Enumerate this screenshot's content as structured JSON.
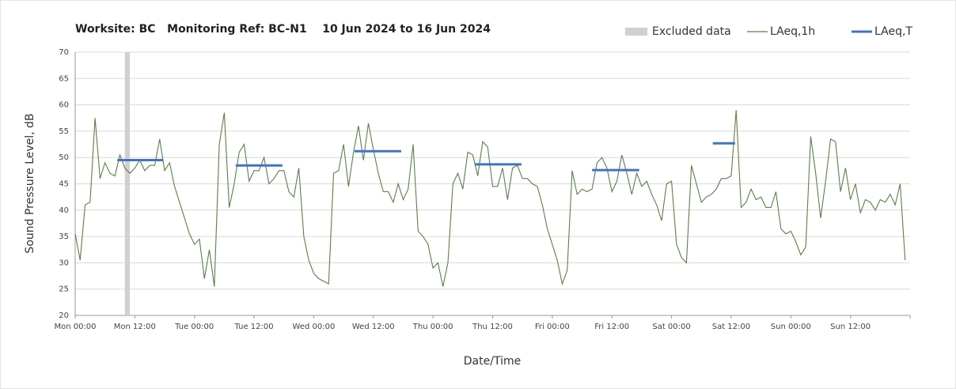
{
  "chart_data": {
    "type": "line",
    "title": "Worksite: BC   Monitoring Ref: BC-N1    10 Jun 2024 to 16 Jun 2024",
    "xlabel": "Date/Time",
    "ylabel": "Sound Pressure Level, dB",
    "xlim": [
      0,
      168
    ],
    "ylim": [
      20,
      70
    ],
    "yticks": [
      20,
      25,
      30,
      35,
      40,
      45,
      50,
      55,
      60,
      65,
      70
    ],
    "xticks": [
      {
        "value": 0,
        "label": "Mon 00:00"
      },
      {
        "value": 12,
        "label": "Mon 12:00"
      },
      {
        "value": 24,
        "label": "Tue 00:00"
      },
      {
        "value": 36,
        "label": "Tue 12:00"
      },
      {
        "value": 48,
        "label": "Wed 00:00"
      },
      {
        "value": 60,
        "label": "Wed 12:00"
      },
      {
        "value": 72,
        "label": "Thu 00:00"
      },
      {
        "value": 84,
        "label": "Thu 12:00"
      },
      {
        "value": 96,
        "label": "Fri 00:00"
      },
      {
        "value": 108,
        "label": "Fri 12:00"
      },
      {
        "value": 120,
        "label": "Sat 00:00"
      },
      {
        "value": 132,
        "label": "Sat 12:00"
      },
      {
        "value": 144,
        "label": "Sun 00:00"
      },
      {
        "value": 156,
        "label": "Sun 12:00"
      }
    ],
    "grid": true,
    "excluded": {
      "name": "Excluded data",
      "color": "#d0d0d0",
      "ranges": [
        [
          10,
          11
        ]
      ]
    },
    "series": [
      {
        "name": "LAeq,1h",
        "color": "#5b7f4b",
        "x": [
          0,
          1,
          2,
          3,
          4,
          5,
          6,
          7,
          8,
          9,
          10,
          11,
          12,
          13,
          14,
          15,
          16,
          17,
          18,
          19,
          20,
          21,
          22,
          23,
          24,
          25,
          26,
          27,
          28,
          29,
          30,
          31,
          32,
          33,
          34,
          35,
          36,
          37,
          38,
          39,
          40,
          41,
          42,
          43,
          44,
          45,
          46,
          47,
          48,
          49,
          50,
          51,
          52,
          53,
          54,
          55,
          56,
          57,
          58,
          59,
          60,
          61,
          62,
          63,
          64,
          65,
          66,
          67,
          68,
          69,
          70,
          71,
          72,
          73,
          74,
          75,
          76,
          77,
          78,
          79,
          80,
          81,
          82,
          83,
          84,
          85,
          86,
          87,
          88,
          89,
          90,
          91,
          92,
          93,
          94,
          95,
          96,
          97,
          98,
          99,
          100,
          101,
          102,
          103,
          104,
          105,
          106,
          107,
          108,
          109,
          110,
          111,
          112,
          113,
          114,
          115,
          116,
          117,
          118,
          119,
          120,
          121,
          122,
          123,
          124,
          125,
          126,
          127,
          128,
          129,
          130,
          131,
          132,
          133,
          134,
          135,
          136,
          137,
          138,
          139,
          140,
          141,
          142,
          143,
          144,
          145,
          146,
          147,
          148,
          149,
          150,
          151,
          152,
          153,
          154,
          155,
          156,
          157,
          158,
          159,
          160,
          161,
          162,
          163,
          164,
          165,
          166,
          167
        ],
        "values": [
          35.5,
          30.5,
          41,
          41.5,
          57.5,
          46,
          49,
          47,
          46.5,
          50.5,
          48,
          47,
          48,
          49.5,
          47.5,
          48.5,
          48.5,
          53.5,
          47.5,
          49,
          44.5,
          41.5,
          38.5,
          35.5,
          33.5,
          34.5,
          27,
          32.5,
          25.5,
          52.5,
          58.5,
          40.5,
          45,
          51,
          52.5,
          45.5,
          47.5,
          47.5,
          50,
          45,
          46,
          47.5,
          47.5,
          43.5,
          42.5,
          48,
          35,
          30.5,
          28,
          27,
          26.5,
          26,
          47,
          47.5,
          52.5,
          44.5,
          51,
          56,
          49.5,
          56.5,
          51.5,
          47,
          43.5,
          43.5,
          41.5,
          45,
          42,
          44,
          52.5,
          36,
          35,
          33.5,
          29,
          30,
          25.5,
          30,
          45,
          47,
          44,
          51,
          50.5,
          46.5,
          53,
          52,
          44.5,
          44.5,
          48,
          42,
          48,
          48.5,
          46,
          46,
          45,
          44.5,
          41,
          36.5,
          33.5,
          30.5,
          26,
          28.5,
          47.5,
          43,
          44,
          43.5,
          44,
          49,
          50,
          48,
          43.5,
          45.5,
          50.5,
          47,
          43,
          47,
          44.5,
          45.5,
          43,
          41,
          38,
          45,
          45.5,
          33.5,
          31,
          30,
          48.5,
          45,
          41.5,
          42.5,
          43,
          44,
          46,
          46,
          46.5,
          59,
          40.5,
          41.5,
          44,
          42,
          42.5,
          40.5,
          40.5,
          43.5,
          36.5,
          35.5,
          36,
          34,
          31.5,
          33,
          54,
          47,
          38.5,
          45.5,
          53.5,
          53,
          43.5,
          48,
          42,
          45,
          39.5,
          42,
          41.5,
          40,
          42,
          41.5,
          43,
          41,
          45,
          30.5
        ]
      },
      {
        "name": "LAeq,T",
        "color": "#4472c4",
        "x_start": [
          8.5,
          32.3,
          56.2,
          80.4,
          104,
          128.3
        ],
        "x_end": [
          17.7,
          41.7,
          65.6,
          89.8,
          113.5,
          132.8
        ],
        "values": [
          49.5,
          48.5,
          51.2,
          48.7,
          47.6,
          52.7
        ]
      }
    ]
  }
}
